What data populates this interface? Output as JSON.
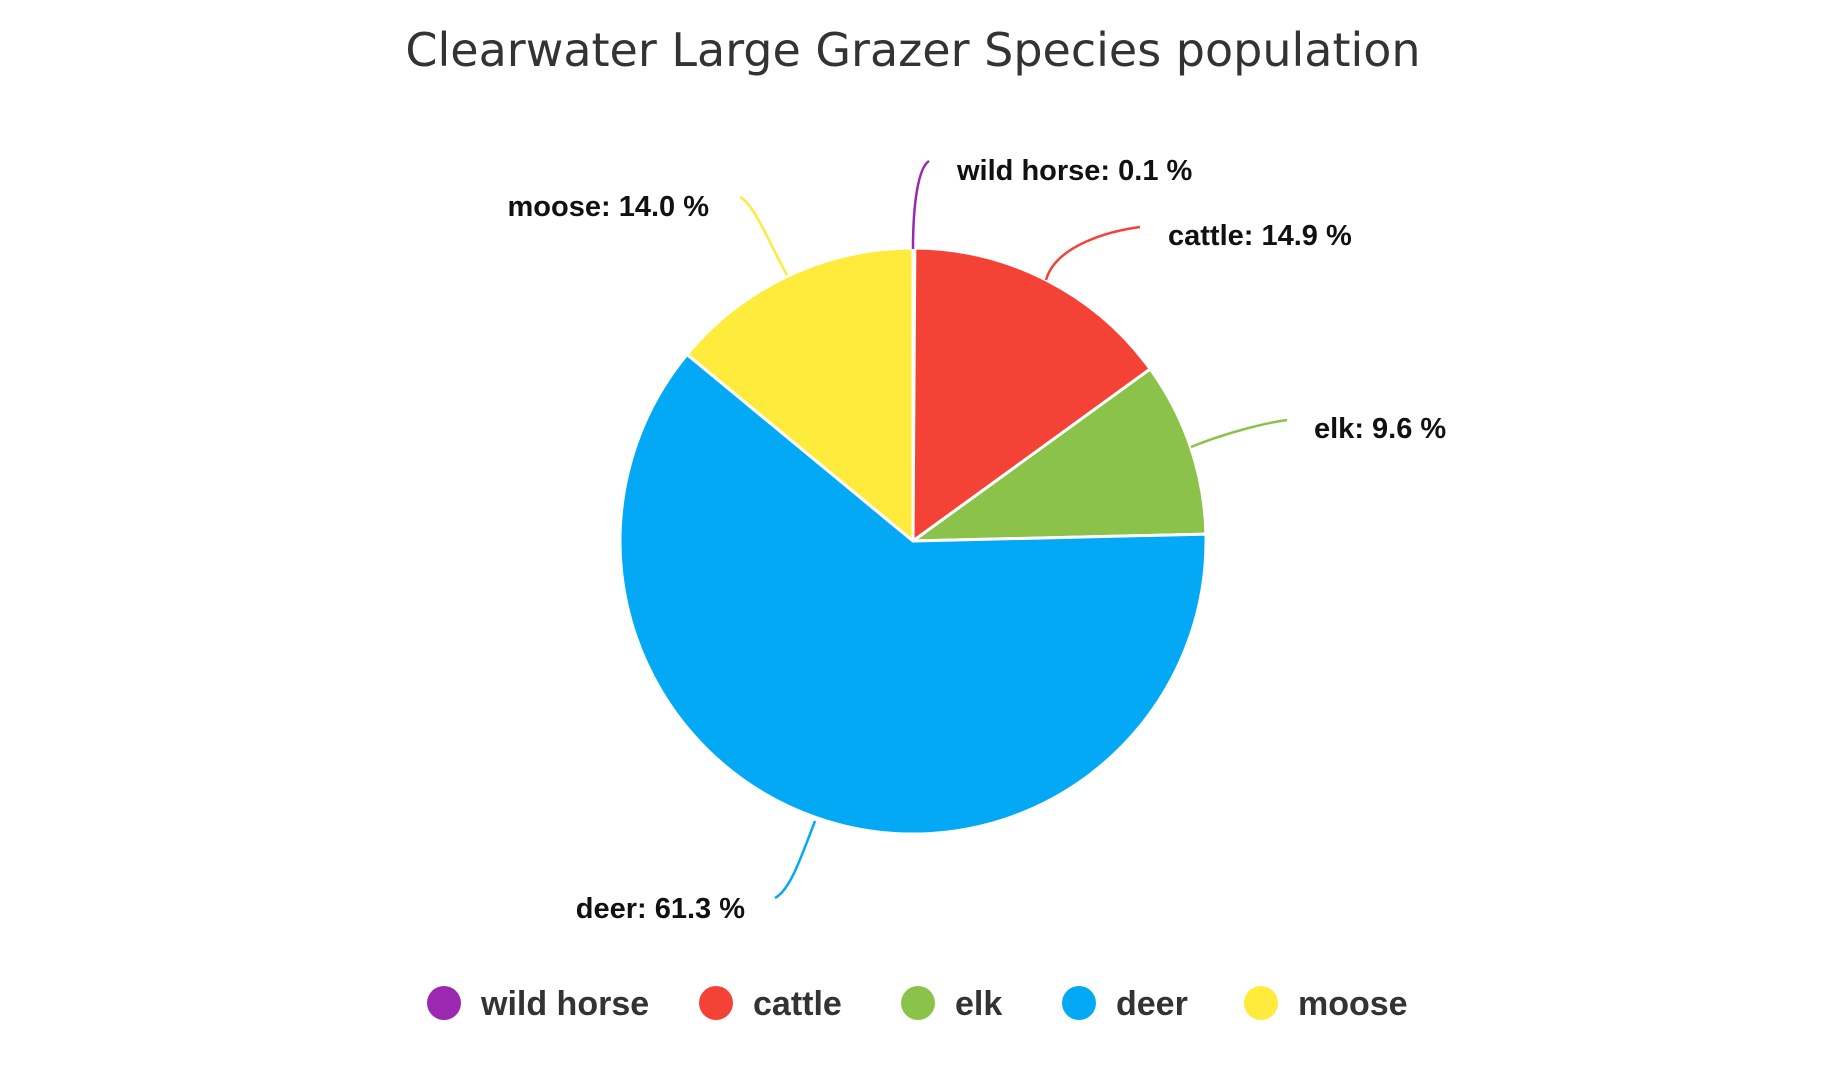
{
  "chart_data": {
    "type": "pie",
    "title": "Clearwater Large Grazer Species population",
    "categories": [
      "wild horse",
      "cattle",
      "elk",
      "deer",
      "moose"
    ],
    "values": [
      0.1,
      14.9,
      9.6,
      61.3,
      14.0
    ],
    "value_unit": "%",
    "colors": [
      "#9C27B0",
      "#F44336",
      "#8BC34A",
      "#03A9F4",
      "#FFEB3B"
    ],
    "slice_labels": [
      "wild horse: 0.1 %",
      "cattle: 14.9 %",
      "elk: 9.6 %",
      "deer: 61.3 %",
      "moose: 14.0 %"
    ],
    "start_angle": "12 o'clock",
    "direction": "clockwise",
    "legend": {
      "position": "bottom",
      "items": [
        "wild horse",
        "cattle",
        "elk",
        "deer",
        "moose"
      ]
    }
  }
}
